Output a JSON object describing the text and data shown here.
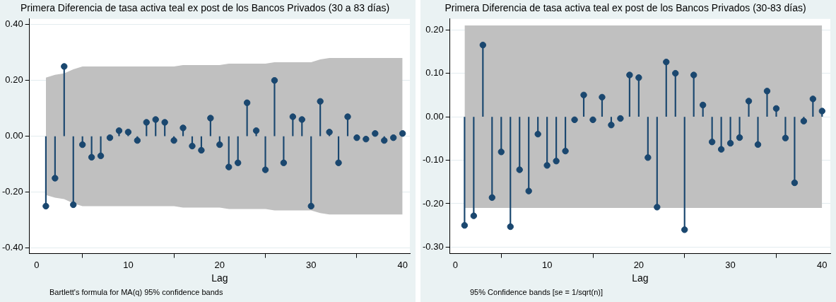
{
  "chart_data": [
    {
      "type": "lollipop",
      "title": "Primera Diferencia de tasa activa teal ex post de los Bancos Privados (30 a 83 días)",
      "xlabel": "Lag",
      "x": [
        1,
        2,
        3,
        4,
        5,
        6,
        7,
        8,
        9,
        10,
        11,
        12,
        13,
        14,
        15,
        16,
        17,
        18,
        19,
        20,
        21,
        22,
        23,
        24,
        25,
        26,
        27,
        28,
        29,
        30,
        31,
        32,
        33,
        34,
        35,
        36,
        37,
        38,
        39,
        40
      ],
      "series": [
        {
          "color": "#1a476f",
          "values": [
            -0.25,
            -0.15,
            0.25,
            -0.245,
            -0.03,
            -0.075,
            -0.07,
            -0.005,
            0.02,
            0.015,
            -0.015,
            0.05,
            0.06,
            0.05,
            -0.015,
            0.03,
            -0.035,
            -0.05,
            0.065,
            -0.03,
            -0.11,
            -0.095,
            0.12,
            0.02,
            -0.12,
            0.2,
            -0.095,
            0.07,
            0.06,
            -0.25,
            0.125,
            0.015,
            -0.095,
            0.07,
            -0.005,
            -0.01,
            0.01,
            -0.015,
            -0.005,
            0.01
          ],
          "upper": [
            0.21,
            0.22,
            0.225,
            0.24,
            0.25,
            0.25,
            0.25,
            0.25,
            0.25,
            0.25,
            0.25,
            0.25,
            0.25,
            0.25,
            0.25,
            0.255,
            0.255,
            0.255,
            0.255,
            0.255,
            0.26,
            0.26,
            0.26,
            0.26,
            0.26,
            0.265,
            0.265,
            0.265,
            0.265,
            0.265,
            0.275,
            0.28,
            0.28,
            0.28,
            0.28,
            0.28,
            0.28,
            0.28,
            0.28,
            0.28
          ],
          "lower": [
            -0.21,
            -0.22,
            -0.225,
            -0.24,
            -0.25,
            -0.25,
            -0.25,
            -0.25,
            -0.25,
            -0.25,
            -0.25,
            -0.25,
            -0.25,
            -0.25,
            -0.25,
            -0.255,
            -0.255,
            -0.255,
            -0.255,
            -0.255,
            -0.26,
            -0.26,
            -0.26,
            -0.26,
            -0.26,
            -0.265,
            -0.265,
            -0.265,
            -0.265,
            -0.265,
            -0.275,
            -0.28,
            -0.28,
            -0.28,
            -0.28,
            -0.28,
            -0.28,
            -0.28,
            -0.28,
            -0.28
          ]
        }
      ],
      "xlim": [
        -0.8,
        40.8
      ],
      "xticks": [
        0,
        10,
        20,
        30,
        40
      ],
      "ylim": [
        -0.42,
        0.42
      ],
      "yticks": [
        {
          "value": -0.4,
          "label": "-0.40"
        },
        {
          "value": -0.2,
          "label": "-0.20"
        },
        {
          "value": 0,
          "label": "0.00"
        },
        {
          "value": 0.2,
          "label": "0.20"
        },
        {
          "value": 0.4,
          "label": "0.40"
        }
      ],
      "grid": "y",
      "marker": "circle",
      "annotations": [
        "Bartlett's formula for MA(q) 95% confidence bands"
      ]
    },
    {
      "type": "lollipop",
      "title": "Primera Diferencia de tasa activa teal ex post de los Bancos Privados (30-83 días)",
      "xlabel": "Lag",
      "x": [
        1,
        2,
        3,
        4,
        5,
        6,
        7,
        8,
        9,
        10,
        11,
        12,
        13,
        14,
        15,
        16,
        17,
        18,
        19,
        20,
        21,
        22,
        23,
        24,
        25,
        26,
        27,
        28,
        29,
        30,
        31,
        32,
        33,
        34,
        35,
        36,
        37,
        38,
        39,
        40
      ],
      "series": [
        {
          "color": "#1a476f",
          "values": [
            -0.25,
            -0.228,
            0.165,
            -0.186,
            -0.081,
            -0.253,
            -0.122,
            -0.171,
            -0.04,
            -0.112,
            -0.102,
            -0.079,
            -0.007,
            0.05,
            -0.007,
            0.045,
            -0.019,
            -0.004,
            0.096,
            0.09,
            -0.094,
            -0.208,
            0.126,
            0.1,
            -0.26,
            0.096,
            0.027,
            -0.058,
            -0.075,
            -0.061,
            -0.048,
            0.036,
            -0.064,
            0.059,
            0.019,
            -0.049,
            -0.152,
            -0.01,
            0.041,
            0.013
          ],
          "upper": [
            0.21,
            0.21,
            0.21,
            0.21,
            0.21,
            0.21,
            0.21,
            0.21,
            0.21,
            0.21,
            0.21,
            0.21,
            0.21,
            0.21,
            0.21,
            0.21,
            0.21,
            0.21,
            0.21,
            0.21,
            0.21,
            0.21,
            0.21,
            0.21,
            0.21,
            0.21,
            0.21,
            0.21,
            0.21,
            0.21,
            0.21,
            0.21,
            0.21,
            0.21,
            0.21,
            0.21,
            0.21,
            0.21,
            0.21,
            0.21
          ],
          "lower": [
            -0.21,
            -0.21,
            -0.21,
            -0.21,
            -0.21,
            -0.21,
            -0.21,
            -0.21,
            -0.21,
            -0.21,
            -0.21,
            -0.21,
            -0.21,
            -0.21,
            -0.21,
            -0.21,
            -0.21,
            -0.21,
            -0.21,
            -0.21,
            -0.21,
            -0.21,
            -0.21,
            -0.21,
            -0.21,
            -0.21,
            -0.21,
            -0.21,
            -0.21,
            -0.21,
            -0.21,
            -0.21,
            -0.21,
            -0.21,
            -0.21,
            -0.21,
            -0.21,
            -0.21,
            -0.21,
            -0.21
          ]
        }
      ],
      "xlim": [
        -0.6,
        40.9
      ],
      "xticks": [
        0,
        10,
        20,
        30,
        40
      ],
      "ylim": [
        -0.315,
        0.225
      ],
      "yticks": [
        {
          "value": -0.3,
          "label": "-0.30"
        },
        {
          "value": -0.2,
          "label": "-0.20"
        },
        {
          "value": -0.1,
          "label": "-0.10"
        },
        {
          "value": 0,
          "label": "0.00"
        },
        {
          "value": 0.1,
          "label": "0.10"
        },
        {
          "value": 0.2,
          "label": "0.20"
        }
      ],
      "grid": "y",
      "marker": "circle",
      "annotations": [
        "95% Confidence bands [se = 1/sqrt(n)]"
      ]
    }
  ]
}
